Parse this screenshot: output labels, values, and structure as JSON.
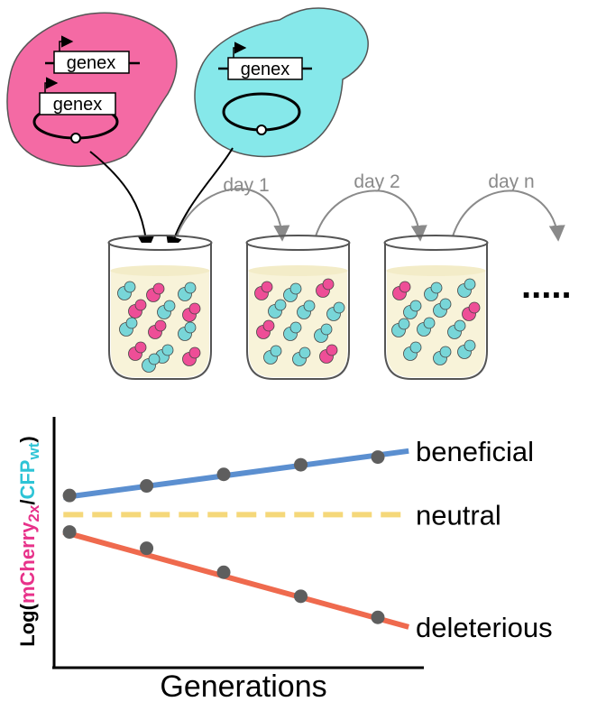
{
  "diagram": {
    "strains": {
      "pink": {
        "gene_top": "genex",
        "gene_plasmid": "genex",
        "color": "#f46aa4"
      },
      "cyan": {
        "gene_top": "genex",
        "color": "#86e8ea"
      }
    },
    "transfer_labels": [
      "day 1",
      "day 2",
      "day n"
    ],
    "continuation": ".....",
    "colors": {
      "pink_cell": "#ee4e97",
      "cyan_cell": "#78d6d8",
      "medium": "#f8f3d9",
      "arrow_gray": "#8a8a8a"
    }
  },
  "chart_data": {
    "type": "line",
    "xlabel": "Generations",
    "ylabel": {
      "prefix": "Log(",
      "numerator": "mCherry",
      "numerator_sub": "2x",
      "separator": "/",
      "denominator": "CFP",
      "denominator_sub": "wt",
      "suffix": ")"
    },
    "series": [
      {
        "name": "beneficial",
        "color": "#5b8fd0",
        "line": [
          [
            0,
            0.18
          ],
          [
            1,
            0.62
          ]
        ],
        "dashed": false
      },
      {
        "name": "neutral",
        "color": "#f5d87a",
        "line": [
          [
            0,
            0.0
          ],
          [
            1,
            0.0
          ]
        ],
        "dashed": true
      },
      {
        "name": "deleterious",
        "color": "#ef6a4e",
        "line": [
          [
            0,
            -0.18
          ],
          [
            1,
            -1.08
          ]
        ],
        "dashed": false
      }
    ],
    "points": [
      {
        "x": 0.0,
        "y": 0.2
      },
      {
        "x": 0.0,
        "y": -0.18
      },
      {
        "x": 0.25,
        "y": 0.3
      },
      {
        "x": 0.25,
        "y": -0.35
      },
      {
        "x": 0.5,
        "y": 0.42
      },
      {
        "x": 0.5,
        "y": -0.6
      },
      {
        "x": 0.75,
        "y": 0.52
      },
      {
        "x": 0.75,
        "y": -0.85
      },
      {
        "x": 1.0,
        "y": 0.6
      },
      {
        "x": 1.0,
        "y": -1.07
      }
    ],
    "point_color": "#5e5e5e",
    "xlim": [
      -0.05,
      1.12
    ],
    "ylim": [
      -1.5,
      0.85
    ],
    "grid": false
  }
}
